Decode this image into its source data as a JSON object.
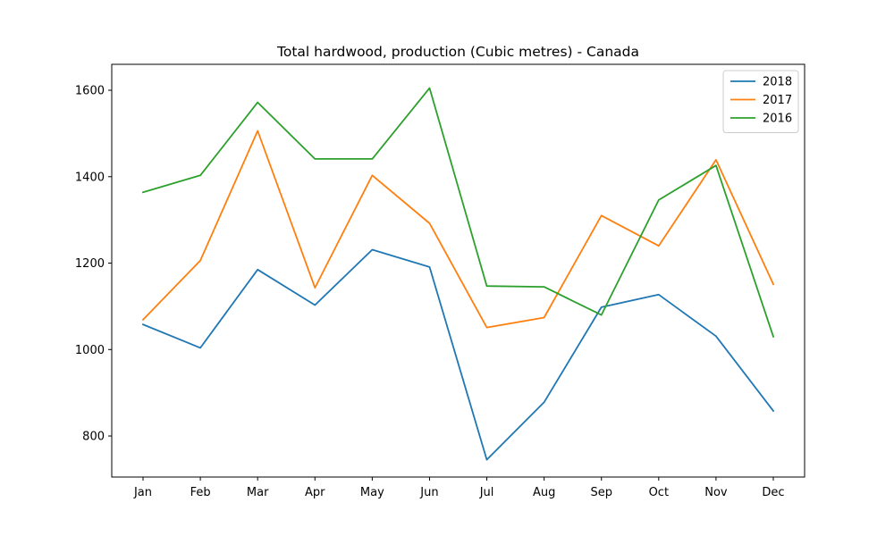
{
  "chart_data": {
    "type": "line",
    "title": "Total hardwood, production (Cubic metres) - Canada",
    "xlabel": "",
    "ylabel": "",
    "categories": [
      "Jan",
      "Feb",
      "Mar",
      "Apr",
      "May",
      "Jun",
      "Jul",
      "Aug",
      "Sep",
      "Oct",
      "Nov",
      "Dec"
    ],
    "ylim": [
      705,
      1660
    ],
    "yticks": [
      800,
      1000,
      1200,
      1400,
      1600
    ],
    "grid": false,
    "legend_position": "top-right",
    "series": [
      {
        "name": "2018",
        "color": "#1f77b4",
        "values": [
          1058,
          1004,
          1185,
          1103,
          1231,
          1191,
          745,
          878,
          1098,
          1127,
          1031,
          858
        ]
      },
      {
        "name": "2017",
        "color": "#ff7f0e",
        "values": [
          1069,
          1206,
          1506,
          1143,
          1403,
          1292,
          1051,
          1074,
          1310,
          1240,
          1439,
          1151
        ]
      },
      {
        "name": "2016",
        "color": "#2ca02c",
        "values": [
          1364,
          1403,
          1572,
          1441,
          1441,
          1605,
          1147,
          1145,
          1080,
          1346,
          1426,
          1030
        ]
      }
    ]
  }
}
